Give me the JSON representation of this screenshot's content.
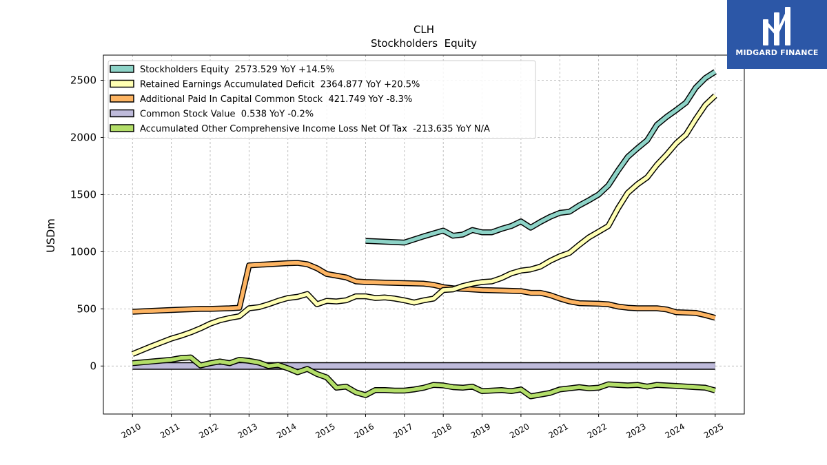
{
  "branding": {
    "logo_text": "MIDGARD FINANCE",
    "logo_bg": "#2c57a7"
  },
  "chart_data": {
    "type": "line",
    "title": "CLH",
    "subtitle": "Stockholders  Equity",
    "ylabel": "USDm",
    "xlabel": "",
    "ylim": [
      -420,
      2720
    ],
    "xlim": [
      2009.25,
      2025.75
    ],
    "yticks": [
      0,
      500,
      1000,
      1500,
      2000,
      2500
    ],
    "xticks": [
      2010,
      2011,
      2012,
      2013,
      2014,
      2015,
      2016,
      2017,
      2018,
      2019,
      2020,
      2021,
      2022,
      2023,
      2024,
      2025
    ],
    "grid": true,
    "legend_position": "top-left",
    "series": [
      {
        "name": "Stockholders Equity  2573.529 YoY +14.5%",
        "color": "#8dd3c7",
        "points": [
          [
            2016.0,
            1095
          ],
          [
            2017.0,
            1080
          ],
          [
            2017.5,
            1135
          ],
          [
            2018.0,
            1185
          ],
          [
            2018.25,
            1140
          ],
          [
            2018.5,
            1150
          ],
          [
            2018.75,
            1190
          ],
          [
            2019.0,
            1170
          ],
          [
            2019.25,
            1170
          ],
          [
            2019.5,
            1200
          ],
          [
            2019.75,
            1225
          ],
          [
            2020.0,
            1265
          ],
          [
            2020.25,
            1210
          ],
          [
            2020.5,
            1260
          ],
          [
            2020.75,
            1305
          ],
          [
            2021.0,
            1340
          ],
          [
            2021.25,
            1350
          ],
          [
            2021.5,
            1405
          ],
          [
            2021.75,
            1450
          ],
          [
            2022.0,
            1500
          ],
          [
            2022.25,
            1580
          ],
          [
            2022.5,
            1710
          ],
          [
            2022.75,
            1830
          ],
          [
            2023.0,
            1905
          ],
          [
            2023.25,
            1975
          ],
          [
            2023.5,
            2110
          ],
          [
            2023.75,
            2180
          ],
          [
            2024.0,
            2240
          ],
          [
            2024.25,
            2305
          ],
          [
            2024.5,
            2435
          ],
          [
            2024.75,
            2520
          ],
          [
            2025.0,
            2574
          ]
        ]
      },
      {
        "name": "Retained Earnings Accumulated Deficit  2364.877 YoY +20.5%",
        "color": "#ffffb3",
        "points": [
          [
            2010.0,
            105
          ],
          [
            2010.5,
            175
          ],
          [
            2011.0,
            240
          ],
          [
            2011.25,
            265
          ],
          [
            2011.5,
            295
          ],
          [
            2011.75,
            330
          ],
          [
            2012.0,
            370
          ],
          [
            2012.25,
            400
          ],
          [
            2012.5,
            420
          ],
          [
            2012.75,
            435
          ],
          [
            2013.0,
            505
          ],
          [
            2013.25,
            515
          ],
          [
            2013.5,
            540
          ],
          [
            2013.75,
            570
          ],
          [
            2014.0,
            595
          ],
          [
            2014.25,
            605
          ],
          [
            2014.5,
            630
          ],
          [
            2014.75,
            540
          ],
          [
            2015.0,
            570
          ],
          [
            2015.25,
            565
          ],
          [
            2015.5,
            575
          ],
          [
            2015.75,
            610
          ],
          [
            2016.0,
            610
          ],
          [
            2016.25,
            595
          ],
          [
            2016.5,
            600
          ],
          [
            2016.75,
            590
          ],
          [
            2017.0,
            575
          ],
          [
            2017.25,
            555
          ],
          [
            2017.5,
            575
          ],
          [
            2017.75,
            590
          ],
          [
            2018.0,
            665
          ],
          [
            2018.25,
            670
          ],
          [
            2018.5,
            700
          ],
          [
            2018.75,
            720
          ],
          [
            2019.0,
            735
          ],
          [
            2019.25,
            740
          ],
          [
            2019.5,
            770
          ],
          [
            2019.75,
            810
          ],
          [
            2020.0,
            835
          ],
          [
            2020.25,
            845
          ],
          [
            2020.5,
            870
          ],
          [
            2020.75,
            920
          ],
          [
            2021.0,
            960
          ],
          [
            2021.25,
            990
          ],
          [
            2021.5,
            1060
          ],
          [
            2021.75,
            1125
          ],
          [
            2022.0,
            1175
          ],
          [
            2022.25,
            1225
          ],
          [
            2022.5,
            1380
          ],
          [
            2022.75,
            1515
          ],
          [
            2023.0,
            1590
          ],
          [
            2023.25,
            1650
          ],
          [
            2023.5,
            1760
          ],
          [
            2023.75,
            1850
          ],
          [
            2024.0,
            1950
          ],
          [
            2024.25,
            2025
          ],
          [
            2024.5,
            2160
          ],
          [
            2024.75,
            2285
          ],
          [
            2025.0,
            2365
          ]
        ]
      },
      {
        "name": "Additional Paid In Capital Common Stock  421.749 YoY -8.3%",
        "color": "#fdb462",
        "points": [
          [
            2010.0,
            475
          ],
          [
            2011.0,
            490
          ],
          [
            2011.75,
            500
          ],
          [
            2012.0,
            500
          ],
          [
            2012.5,
            505
          ],
          [
            2012.75,
            510
          ],
          [
            2013.0,
            880
          ],
          [
            2013.5,
            890
          ],
          [
            2014.0,
            900
          ],
          [
            2014.25,
            902
          ],
          [
            2014.5,
            890
          ],
          [
            2014.75,
            855
          ],
          [
            2015.0,
            805
          ],
          [
            2015.25,
            790
          ],
          [
            2015.5,
            775
          ],
          [
            2015.75,
            740
          ],
          [
            2016.0,
            735
          ],
          [
            2016.5,
            730
          ],
          [
            2017.0,
            725
          ],
          [
            2017.5,
            720
          ],
          [
            2017.75,
            710
          ],
          [
            2018.0,
            690
          ],
          [
            2018.25,
            680
          ],
          [
            2018.5,
            675
          ],
          [
            2018.75,
            670
          ],
          [
            2019.0,
            665
          ],
          [
            2019.5,
            660
          ],
          [
            2020.0,
            655
          ],
          [
            2020.25,
            640
          ],
          [
            2020.5,
            640
          ],
          [
            2020.75,
            620
          ],
          [
            2021.0,
            590
          ],
          [
            2021.25,
            565
          ],
          [
            2021.5,
            550
          ],
          [
            2022.0,
            545
          ],
          [
            2022.25,
            540
          ],
          [
            2022.5,
            520
          ],
          [
            2022.75,
            510
          ],
          [
            2023.0,
            505
          ],
          [
            2023.5,
            505
          ],
          [
            2023.75,
            495
          ],
          [
            2024.0,
            470
          ],
          [
            2024.5,
            465
          ],
          [
            2024.75,
            445
          ],
          [
            2025.0,
            422
          ]
        ]
      },
      {
        "name": "Common Stock Value  0.538 YoY -0.2%",
        "color": "#bebada",
        "points": [
          [
            2010.0,
            0.5
          ],
          [
            2025.0,
            0.538
          ]
        ]
      },
      {
        "name": "Accumulated Other Comprehensive Income Loss Net Of Tax  -213.635 YoY N/A",
        "color": "#b3de69",
        "points": [
          [
            2010.0,
            25
          ],
          [
            2010.5,
            40
          ],
          [
            2011.0,
            55
          ],
          [
            2011.25,
            70
          ],
          [
            2011.5,
            75
          ],
          [
            2011.75,
            5
          ],
          [
            2012.0,
            25
          ],
          [
            2012.25,
            40
          ],
          [
            2012.5,
            25
          ],
          [
            2012.75,
            55
          ],
          [
            2013.0,
            45
          ],
          [
            2013.25,
            30
          ],
          [
            2013.5,
            0
          ],
          [
            2013.75,
            10
          ],
          [
            2014.0,
            -20
          ],
          [
            2014.25,
            -55
          ],
          [
            2014.5,
            -25
          ],
          [
            2014.75,
            -70
          ],
          [
            2015.0,
            -100
          ],
          [
            2015.25,
            -190
          ],
          [
            2015.5,
            -180
          ],
          [
            2015.75,
            -230
          ],
          [
            2016.0,
            -255
          ],
          [
            2016.25,
            -210
          ],
          [
            2016.5,
            -210
          ],
          [
            2016.75,
            -215
          ],
          [
            2017.0,
            -215
          ],
          [
            2017.25,
            -205
          ],
          [
            2017.5,
            -190
          ],
          [
            2017.75,
            -165
          ],
          [
            2018.0,
            -170
          ],
          [
            2018.25,
            -185
          ],
          [
            2018.5,
            -190
          ],
          [
            2018.75,
            -180
          ],
          [
            2019.0,
            -220
          ],
          [
            2019.5,
            -210
          ],
          [
            2019.75,
            -220
          ],
          [
            2020.0,
            -205
          ],
          [
            2020.25,
            -265
          ],
          [
            2020.5,
            -250
          ],
          [
            2020.75,
            -235
          ],
          [
            2021.0,
            -205
          ],
          [
            2021.25,
            -195
          ],
          [
            2021.5,
            -185
          ],
          [
            2021.75,
            -195
          ],
          [
            2022.0,
            -190
          ],
          [
            2022.25,
            -160
          ],
          [
            2022.5,
            -165
          ],
          [
            2022.75,
            -170
          ],
          [
            2023.0,
            -165
          ],
          [
            2023.25,
            -180
          ],
          [
            2023.5,
            -165
          ],
          [
            2023.75,
            -170
          ],
          [
            2024.0,
            -175
          ],
          [
            2024.5,
            -185
          ],
          [
            2024.75,
            -190
          ],
          [
            2025.0,
            -214
          ]
        ]
      }
    ]
  }
}
